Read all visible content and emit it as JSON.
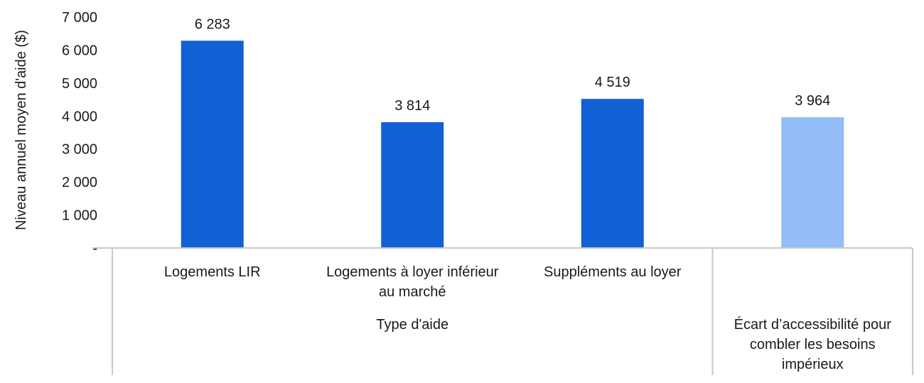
{
  "chart_data": {
    "type": "bar",
    "ylabel": "Niveau annuel moyen d'aide ($)",
    "ylim": [
      0,
      7000
    ],
    "yticks": [
      "-",
      "1 000",
      "2 000",
      "3 000",
      "4 000",
      "5 000",
      "6 000",
      "7 000"
    ],
    "grid": false,
    "categories": [
      [
        "Logements LIR"
      ],
      [
        "Logements à loyer inférieur",
        "au marché"
      ],
      [
        "Suppléments au loyer"
      ],
      [
        ""
      ]
    ],
    "values": [
      6283,
      3814,
      4519,
      3964
    ],
    "data_labels": [
      "6 283",
      "3 814",
      "4 519",
      "3 964"
    ],
    "colors": [
      "#1160d6",
      "#1160d6",
      "#1160d6",
      "#94bdf7"
    ],
    "groups": [
      {
        "label": [
          "Type d'aide"
        ],
        "categories": [
          0,
          1,
          2
        ]
      },
      {
        "label": [
          "Écart d’accessibilité pour",
          "combler les besoins",
          "impérieux"
        ],
        "categories": [
          3
        ]
      }
    ]
  }
}
